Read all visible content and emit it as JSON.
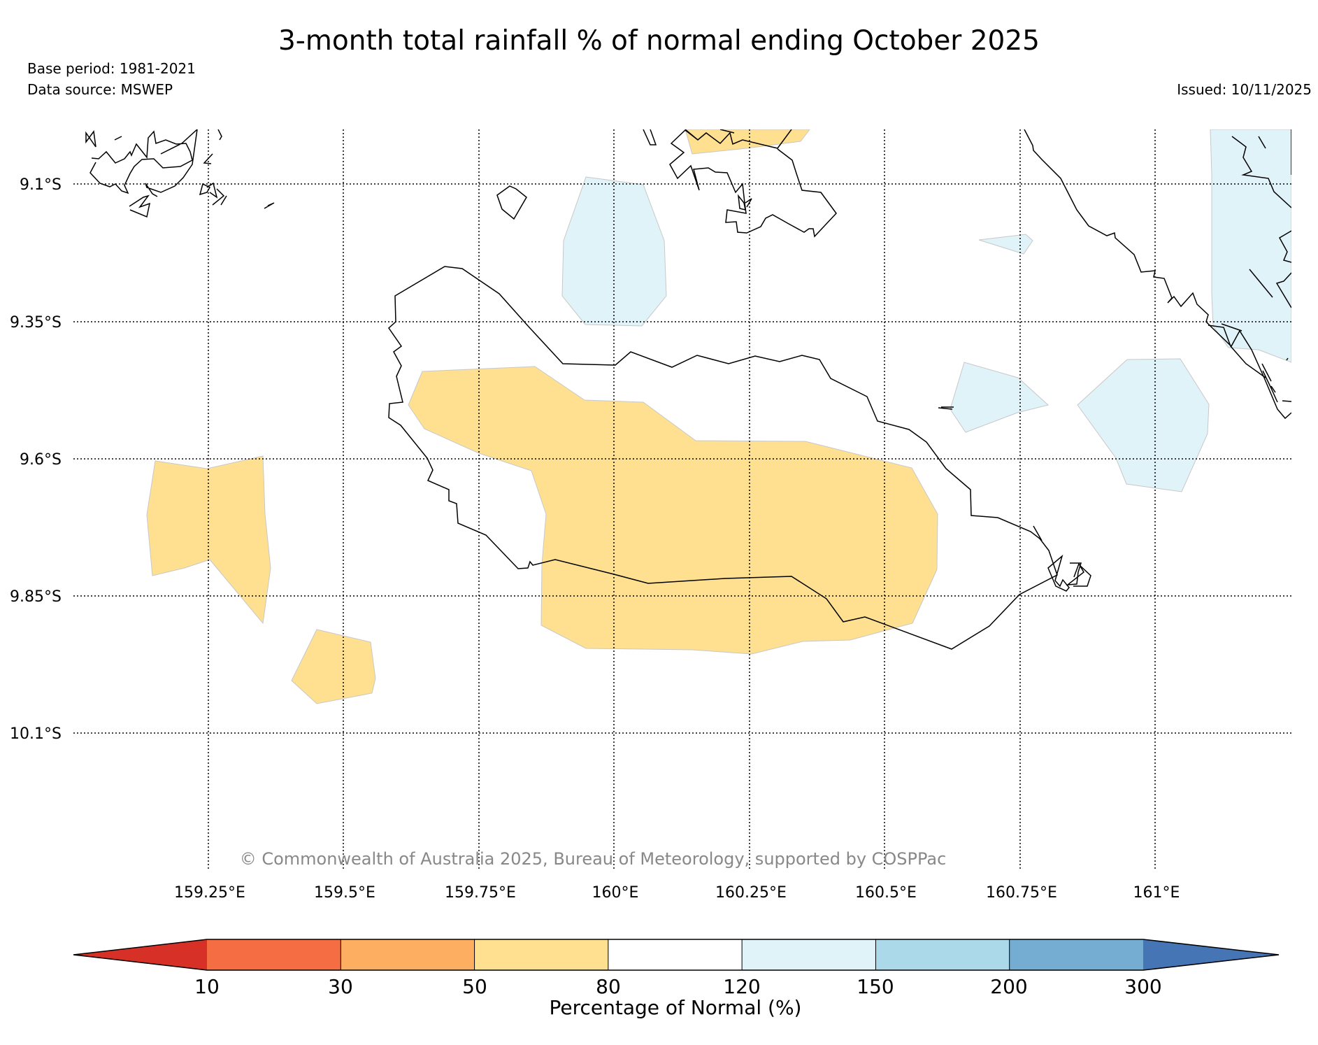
{
  "title": "3-month total rainfall % of normal ending October 2025",
  "base_period": "Base period: 1981-2021",
  "data_source": "Data source: MSWEP",
  "issued": "Issued: 10/11/2025",
  "copyright": "© Commonwealth of Australia 2025, Bureau of Meteorology, supported by COSPPac",
  "map": {
    "lat_labels": [
      "9.1°S",
      "9.35°S",
      "9.6°S",
      "9.85°S",
      "10.1°S"
    ],
    "lon_labels": [
      "159.25°E",
      "159.5°E",
      "159.75°E",
      "160°E",
      "160.25°E",
      "160.5°E",
      "160.75°E",
      "161°E"
    ]
  },
  "colorbar": {
    "label": "Percentage of Normal (%)",
    "ticks": [
      "10",
      "30",
      "50",
      "80",
      "120",
      "150",
      "200",
      "300"
    ],
    "colors": [
      "#d73027",
      "#f46d43",
      "#fdae61",
      "#fee090",
      "#ffffff",
      "#e0f3f8",
      "#abd9e9",
      "#74add1",
      "#4575b4"
    ]
  }
}
